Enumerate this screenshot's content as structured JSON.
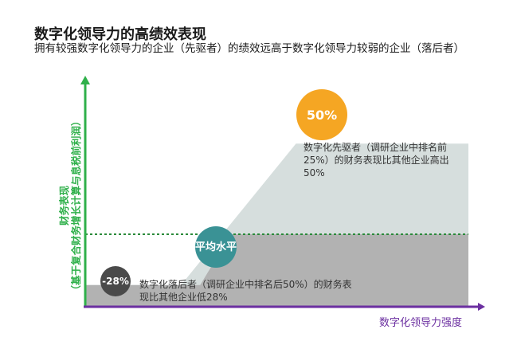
{
  "title": "数字化领导力的高绩效表现",
  "subtitle": "拥有较强数字化领导力的企业（先驱者）的绩效远高于数字化领导力较弱的企业（落后者）",
  "chart_data": {
    "type": "area",
    "title": "数字化领导力的高绩效表现",
    "xlabel": "数字化领导力强度",
    "ylabel_line1": "财务表现",
    "ylabel_line2": "（基于复合财务增长计算与息税前利润）",
    "ylim": [
      -40,
      80
    ],
    "xlim": [
      0,
      100
    ],
    "average_line": 0,
    "series": [
      {
        "role": "laggard_region",
        "x": [
          0,
          100
        ],
        "y": [
          -28,
          0
        ]
      },
      {
        "role": "leader_curve",
        "x": [
          0,
          25,
          55,
          100
        ],
        "y": [
          -28,
          -28,
          50,
          50
        ]
      }
    ],
    "annotations": [
      {
        "badge": "50%",
        "text": "数字化先驱者（调研企业中排名前25%）的财务表现比其他企业高出50%"
      },
      {
        "badge": "平均水平",
        "text": ""
      },
      {
        "badge": "-28%",
        "text": "数字化落后者（调研企业中排名后50%）的财务表现比其他企业低28%"
      }
    ],
    "colors": {
      "leader_area": "#d6dedd",
      "laggard_area": "#b2b2b2",
      "y_axis": "#2fb04a",
      "x_axis": "#6b2fa0",
      "average_line": "#2a8a3a",
      "leader_badge": "#f5a623",
      "average_badge": "#3a9295",
      "laggard_badge": "#4a4a4a"
    }
  }
}
